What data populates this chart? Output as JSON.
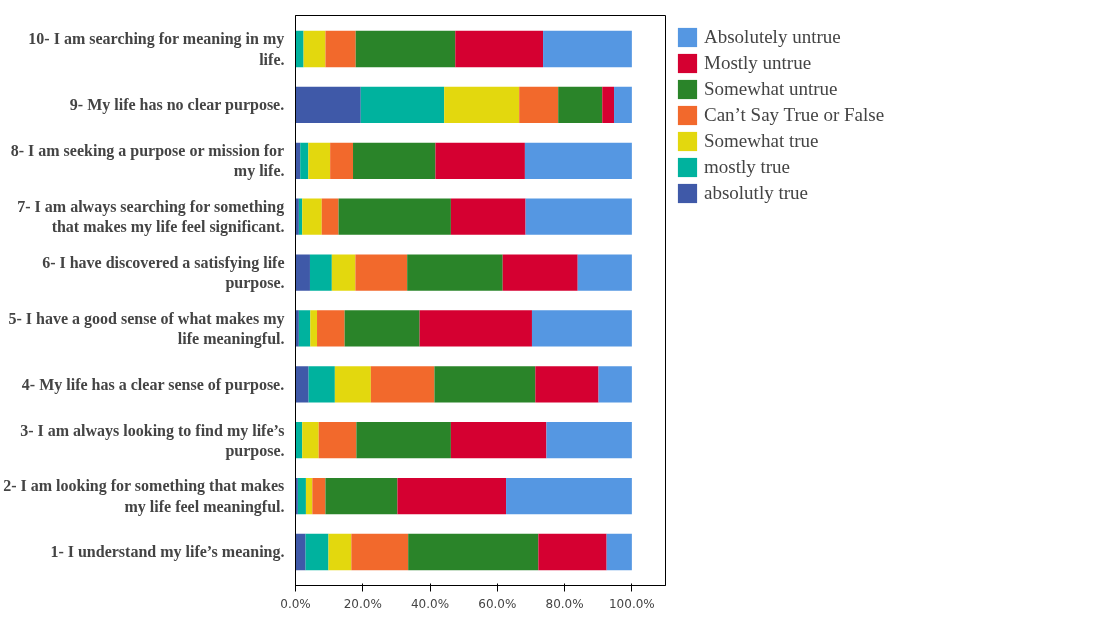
{
  "chart_data": {
    "type": "bar",
    "orientation": "horizontal",
    "stacked": true,
    "categories": [
      "10- I am searching for meaning in my life.",
      "9- My life has no clear purpose.",
      "8- I am seeking a purpose or mission for my life.",
      "7- I am always searching for something that makes my life feel significant.",
      "6- I have discovered a satisfying life purpose.",
      "5- I have a good sense of what makes my life meaningful.",
      "4- My life has a clear sense of purpose.",
      "3- I am always looking to find my life’s purpose.",
      "2- I am looking for something that makes my life feel meaningful.",
      "1- I understand my life’s meaning."
    ],
    "series": [
      {
        "name": "absolutly true",
        "color": "#3f59a8",
        "values": [
          0,
          19.4,
          1.4,
          1.0,
          4.3,
          1.0,
          3.9,
          0,
          0.7,
          3.0
        ]
      },
      {
        "name": "mostly true",
        "color": "#00b29e",
        "values": [
          2.4,
          24.8,
          2.4,
          1.0,
          6.5,
          3.4,
          7.8,
          2.0,
          2.4,
          6.8
        ]
      },
      {
        "name": "Somewhat true",
        "color": "#e3d80e",
        "values": [
          6.5,
          22.3,
          6.5,
          5.8,
          7.0,
          2.0,
          10.7,
          4.9,
          1.9,
          6.8
        ]
      },
      {
        "name": "Can’t Say True or False",
        "color": "#f2692c",
        "values": [
          9.0,
          11.6,
          6.8,
          5.0,
          15.4,
          8.2,
          18.9,
          11.2,
          3.9,
          16.9
        ]
      },
      {
        "name": "Somewhat untrue",
        "color": "#2a8429",
        "values": [
          29.6,
          13.1,
          24.5,
          33.4,
          28.4,
          22.3,
          30.0,
          28.1,
          21.4,
          38.7
        ]
      },
      {
        "name": "Mostly untrue",
        "color": "#d50031",
        "values": [
          26.1,
          3.5,
          26.6,
          22.2,
          22.3,
          33.4,
          18.8,
          28.4,
          32.3,
          20.3
        ]
      },
      {
        "name": "Absolutely untrue",
        "color": "#5597e2",
        "values": [
          26.4,
          5.3,
          31.8,
          31.6,
          16.1,
          29.7,
          9.9,
          25.4,
          37.4,
          7.5
        ]
      }
    ],
    "xlim": [
      0,
      110
    ],
    "xticks": [
      {
        "value": 0,
        "label": "0.0%"
      },
      {
        "value": 20,
        "label": "20.0%"
      },
      {
        "value": 40,
        "label": "40.0%"
      },
      {
        "value": 60,
        "label": "60.0%"
      },
      {
        "value": 80,
        "label": "80.0%"
      },
      {
        "value": 100,
        "label": "100.0%"
      }
    ],
    "grid": false,
    "legend": "right"
  }
}
